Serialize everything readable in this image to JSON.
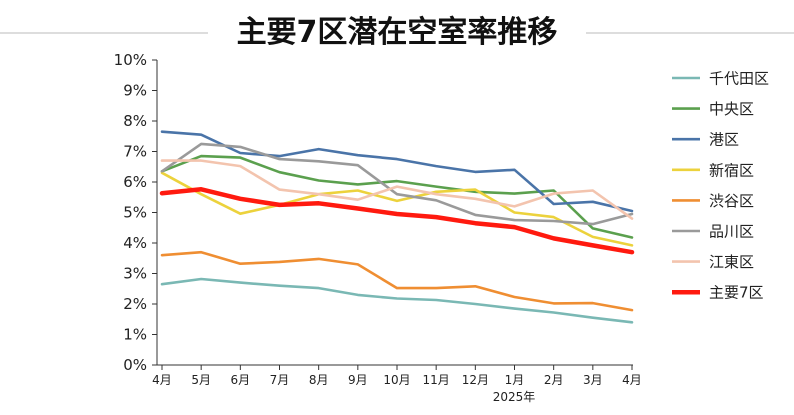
{
  "chart_data": {
    "type": "line",
    "title": "主要7区潜在空室率推移",
    "categories": [
      "4月",
      "5月",
      "6月",
      "7月",
      "8月",
      "9月",
      "10月",
      "11月",
      "12月",
      "1月",
      "2月",
      "3月",
      "4月"
    ],
    "year_note": "2025年",
    "ylim": [
      0,
      10
    ],
    "y_ticks": [
      "0%",
      "1%",
      "2%",
      "3%",
      "4%",
      "5%",
      "6%",
      "7%",
      "8%",
      "9%",
      "10%"
    ],
    "grid": false,
    "legend_position": "right",
    "series": [
      {
        "name": "千代田区",
        "color": "#7ab8b4",
        "values": [
          2.65,
          2.82,
          2.7,
          2.6,
          2.52,
          2.3,
          2.18,
          2.13,
          2.0,
          1.85,
          1.72,
          1.55,
          1.4
        ]
      },
      {
        "name": "中央区",
        "color": "#5ba04e",
        "values": [
          6.35,
          6.85,
          6.8,
          6.32,
          6.05,
          5.92,
          6.03,
          5.85,
          5.68,
          5.62,
          5.72,
          4.48,
          4.18
        ]
      },
      {
        "name": "港区",
        "color": "#4a74a8",
        "values": [
          7.65,
          7.55,
          6.95,
          6.85,
          7.08,
          6.88,
          6.75,
          6.52,
          6.33,
          6.4,
          5.28,
          5.35,
          5.05
        ]
      },
      {
        "name": "新宿区",
        "color": "#ecd23c",
        "values": [
          6.3,
          5.6,
          4.96,
          5.25,
          5.6,
          5.72,
          5.38,
          5.68,
          5.75,
          5.0,
          4.85,
          4.2,
          3.92
        ]
      },
      {
        "name": "渋谷区",
        "color": "#ef8e32",
        "values": [
          3.6,
          3.7,
          3.32,
          3.38,
          3.48,
          3.3,
          2.52,
          2.52,
          2.58,
          2.23,
          2.02,
          2.03,
          1.8
        ]
      },
      {
        "name": "品川区",
        "color": "#9a9a9a",
        "values": [
          6.35,
          7.25,
          7.15,
          6.75,
          6.68,
          6.55,
          5.6,
          5.4,
          4.92,
          4.75,
          4.72,
          4.62,
          4.95
        ]
      },
      {
        "name": "江東区",
        "color": "#f3c4ae",
        "values": [
          6.7,
          6.7,
          6.52,
          5.75,
          5.6,
          5.42,
          5.85,
          5.6,
          5.45,
          5.2,
          5.62,
          5.72,
          4.8
        ]
      },
      {
        "name": "主要7区",
        "color": "#ff1a0f",
        "bold": true,
        "values": [
          5.63,
          5.76,
          5.45,
          5.25,
          5.3,
          5.13,
          4.95,
          4.85,
          4.65,
          4.52,
          4.15,
          3.92,
          3.7
        ]
      }
    ]
  }
}
